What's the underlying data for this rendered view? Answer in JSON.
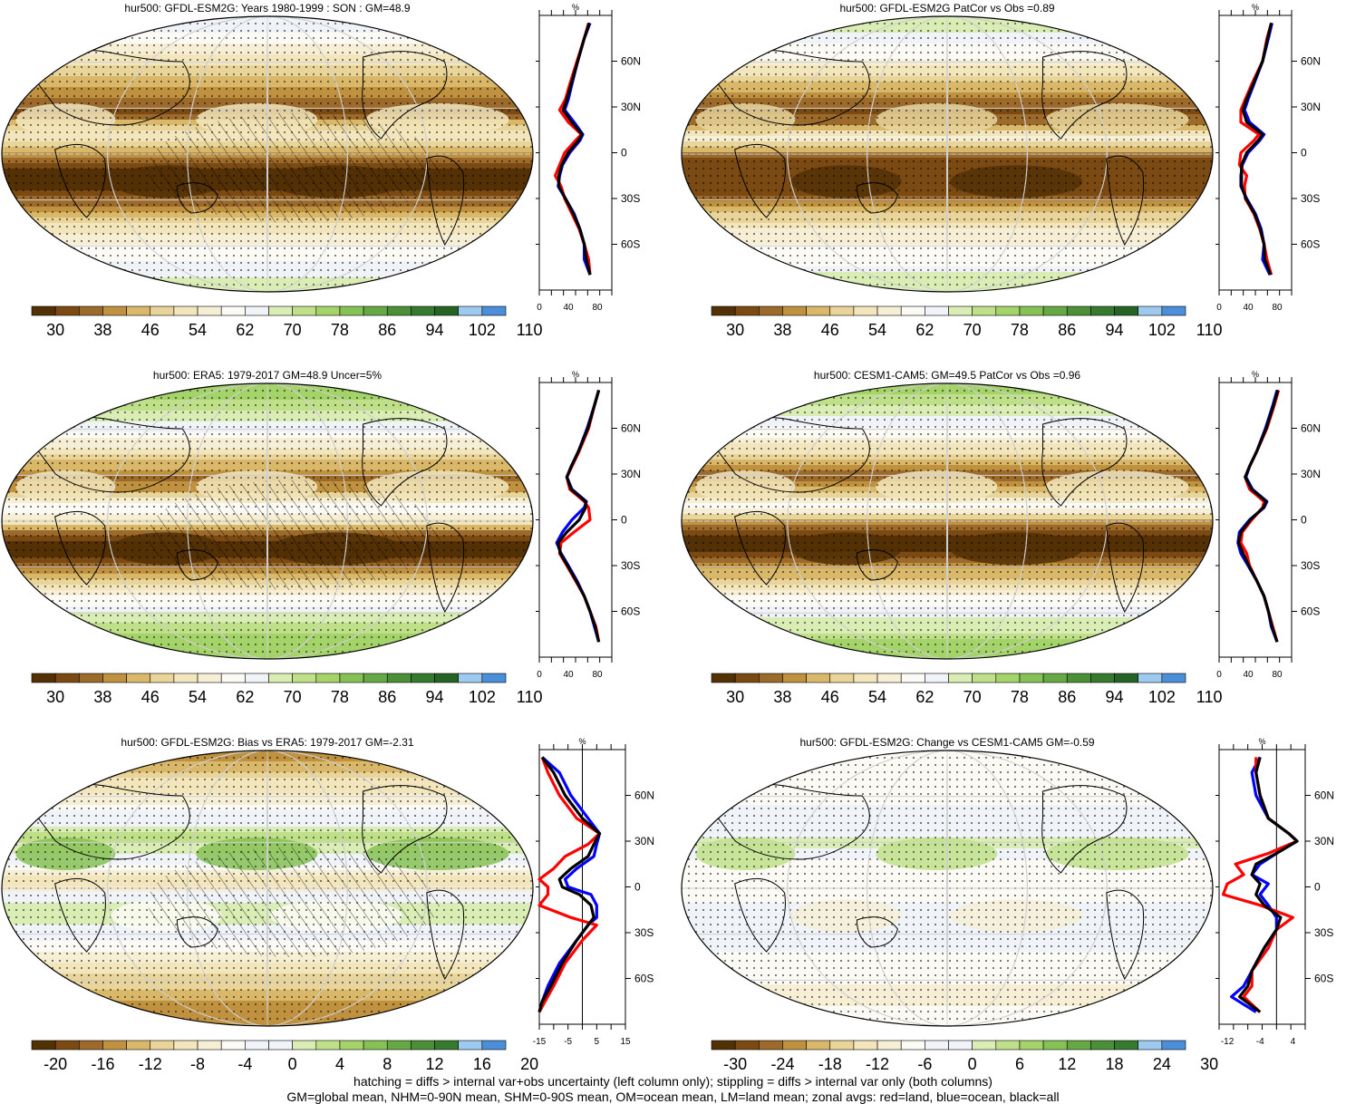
{
  "footer": {
    "line1": "hatching = diffs > internal var+obs uncertainty (left column only); stippling = diffs > internal var only (both columns)",
    "line2": "GM=global mean, NHM=0-90N mean, SHM=0-90S mean, OM=ocean mean, LM=land mean; zonal avgs: red=land, blue=ocean, black=all"
  },
  "colors": {
    "land": "#ff0000",
    "ocean": "#0000ff",
    "all": "#000000"
  },
  "lat_labels": [
    "60N",
    "30N",
    "0",
    "30S",
    "60S"
  ],
  "profile_unit": "%",
  "panels": [
    {
      "id": "p1",
      "title": "hur500: GFDL-ESM2G: Years 1980-1999 : SON : GM=48.9",
      "colorbar_ticks": [
        "30",
        "38",
        "46",
        "54",
        "62",
        "70",
        "78",
        "86",
        "94",
        "102",
        "110"
      ],
      "profile_xticks": [
        "0",
        "40",
        "80"
      ],
      "hatched": true
    },
    {
      "id": "p2",
      "title": "hur500: GFDL-ESM2G PatCor vs Obs =0.89",
      "colorbar_ticks": [
        "30",
        "38",
        "46",
        "54",
        "62",
        "70",
        "78",
        "86",
        "94",
        "102",
        "110"
      ],
      "profile_xticks": [
        "0",
        "40",
        "80"
      ],
      "hatched": false
    },
    {
      "id": "p3",
      "title": "hur500: ERA5: 1979-2017 GM=48.9 Uncer=5%",
      "colorbar_ticks": [
        "30",
        "38",
        "46",
        "54",
        "62",
        "70",
        "78",
        "86",
        "94",
        "102",
        "110"
      ],
      "profile_xticks": [
        "0",
        "40",
        "80"
      ],
      "hatched": true
    },
    {
      "id": "p4",
      "title": "hur500: CESM1-CAM5: GM=49.5 PatCor vs Obs =0.96",
      "colorbar_ticks": [
        "30",
        "38",
        "46",
        "54",
        "62",
        "70",
        "78",
        "86",
        "94",
        "102",
        "110"
      ],
      "profile_xticks": [
        "0",
        "40",
        "80"
      ],
      "hatched": false
    },
    {
      "id": "p5",
      "title": "hur500: GFDL-ESM2G: Bias vs ERA5: 1979-2017  GM=-2.31",
      "colorbar_ticks": [
        "-20",
        "-16",
        "-12",
        "-8",
        "-4",
        "0",
        "4",
        "8",
        "12",
        "16",
        "20"
      ],
      "profile_xticks": [
        "-15",
        "-5",
        "5",
        "15"
      ],
      "hatched": true
    },
    {
      "id": "p6",
      "title": "hur500: GFDL-ESM2G: Change vs CESM1-CAM5 GM=-0.59",
      "colorbar_ticks": [
        "-30",
        "-24",
        "-18",
        "-12",
        "-6",
        "0",
        "6",
        "12",
        "18",
        "24",
        "30"
      ],
      "profile_xticks": [
        "-12",
        "-4",
        "4"
      ],
      "hatched": false
    }
  ],
  "chart_data": [
    {
      "type": "heatmap",
      "title": "hur500: GFDL-ESM2G: Years 1980-1999 : SON : GM=48.9",
      "colorbar": {
        "min": 26,
        "max": 114,
        "ticks": [
          30,
          38,
          46,
          54,
          62,
          70,
          78,
          86,
          94,
          102,
          110
        ]
      },
      "zonal_profile": {
        "type": "line",
        "xlim": [
          0,
          100
        ],
        "ylim": [
          -90,
          90
        ],
        "ylabel": "%",
        "lat": [
          85,
          75,
          60,
          45,
          35,
          28,
          20,
          12,
          8,
          0,
          -8,
          -15,
          -22,
          -30,
          -40,
          -50,
          -60,
          -70,
          -80
        ],
        "series": [
          {
            "name": "land",
            "values": [
              68,
              62,
              52,
              42,
              36,
              28,
              40,
              58,
              50,
              35,
              28,
              22,
              30,
              35,
              45,
              55,
              62,
              68,
              70
            ]
          },
          {
            "name": "ocean",
            "values": [
              70,
              62,
              53,
              45,
              40,
              35,
              48,
              60,
              56,
              42,
              32,
              28,
              26,
              36,
              48,
              56,
              62,
              62,
              70
            ]
          },
          {
            "name": "all",
            "values": [
              69,
              62,
              53,
              44,
              38,
              33,
              45,
              59,
              54,
              40,
              31,
              27,
              27,
              36,
              47,
              56,
              62,
              65,
              70
            ]
          }
        ]
      }
    },
    {
      "type": "heatmap",
      "title": "hur500: GFDL-ESM2G PatCor vs Obs =0.89",
      "colorbar": {
        "min": 26,
        "max": 114,
        "ticks": [
          30,
          38,
          46,
          54,
          62,
          70,
          78,
          86,
          94,
          102,
          110
        ]
      },
      "zonal_profile": {
        "type": "line",
        "xlim": [
          0,
          100
        ],
        "ylim": [
          -90,
          90
        ],
        "ylabel": "%",
        "lat": [
          85,
          75,
          60,
          45,
          35,
          28,
          20,
          12,
          8,
          0,
          -8,
          -15,
          -22,
          -30,
          -40,
          -50,
          -60,
          -70,
          -80
        ],
        "series": [
          {
            "name": "land",
            "values": [
              72,
              66,
              60,
              45,
              36,
              30,
              30,
              55,
              48,
              30,
              28,
              38,
              35,
              36,
              48,
              56,
              62,
              66,
              72
            ]
          },
          {
            "name": "ocean",
            "values": [
              73,
              68,
              60,
              48,
              40,
              35,
              42,
              62,
              56,
              40,
              32,
              30,
              30,
              38,
              50,
              58,
              62,
              60,
              70
            ]
          },
          {
            "name": "all",
            "values": [
              72,
              67,
              60,
              47,
              38,
              33,
              38,
              60,
              54,
              38,
              31,
              31,
              31,
              37,
              49,
              57,
              62,
              63,
              71
            ]
          }
        ]
      }
    },
    {
      "type": "heatmap",
      "title": "hur500: ERA5: 1979-2017 GM=48.9 Uncer=5%",
      "colorbar": {
        "min": 26,
        "max": 114,
        "ticks": [
          30,
          38,
          46,
          54,
          62,
          70,
          78,
          86,
          94,
          102,
          110
        ]
      },
      "zonal_profile": {
        "type": "line",
        "xlim": [
          0,
          100
        ],
        "ylim": [
          -90,
          90
        ],
        "ylabel": "%",
        "lat": [
          85,
          75,
          60,
          45,
          35,
          28,
          20,
          12,
          8,
          0,
          -8,
          -15,
          -22,
          -30,
          -40,
          -50,
          -60,
          -70,
          -80
        ],
        "series": [
          {
            "name": "land",
            "values": [
              82,
              76,
              68,
              55,
              45,
              38,
              42,
              62,
              68,
              70,
              48,
              30,
              28,
              38,
              50,
              62,
              70,
              78,
              82
            ]
          },
          {
            "name": "ocean",
            "values": [
              82,
              76,
              66,
              54,
              44,
              38,
              45,
              65,
              62,
              45,
              32,
              24,
              30,
              40,
              52,
              62,
              70,
              76,
              82
            ]
          },
          {
            "name": "all",
            "values": [
              82,
              76,
              67,
              54,
              44,
              38,
              44,
              64,
              64,
              55,
              38,
              26,
              29,
              39,
              51,
              62,
              70,
              77,
              82
            ]
          }
        ]
      }
    },
    {
      "type": "heatmap",
      "title": "hur500: CESM1-CAM5: GM=49.5 PatCor vs Obs =0.96",
      "colorbar": {
        "min": 26,
        "max": 114,
        "ticks": [
          30,
          38,
          46,
          54,
          62,
          70,
          78,
          86,
          94,
          102,
          110
        ]
      },
      "zonal_profile": {
        "type": "line",
        "xlim": [
          0,
          100
        ],
        "ylim": [
          -90,
          90
        ],
        "ylabel": "%",
        "lat": [
          85,
          75,
          60,
          45,
          35,
          28,
          20,
          12,
          8,
          0,
          -8,
          -15,
          -22,
          -30,
          -40,
          -50,
          -60,
          -70,
          -80
        ],
        "series": [
          {
            "name": "land",
            "values": [
              82,
              76,
              66,
              52,
              42,
              36,
              42,
              62,
              60,
              45,
              32,
              30,
              38,
              42,
              52,
              62,
              68,
              74,
              80
            ]
          },
          {
            "name": "ocean",
            "values": [
              80,
              74,
              64,
              52,
              42,
              37,
              46,
              66,
              62,
              42,
              28,
              26,
              30,
              40,
              52,
              62,
              68,
              72,
              80
            ]
          },
          {
            "name": "all",
            "values": [
              81,
              75,
              65,
              52,
              42,
              36,
              45,
              65,
              61,
              43,
              30,
              27,
              33,
              41,
              52,
              62,
              68,
              73,
              80
            ]
          }
        ]
      }
    },
    {
      "type": "heatmap",
      "title": "hur500: GFDL-ESM2G: Bias vs ERA5: 1979-2017  GM=-2.31",
      "colorbar": {
        "min": -22,
        "max": 22,
        "ticks": [
          -20,
          -16,
          -12,
          -8,
          -4,
          0,
          4,
          8,
          12,
          16,
          20
        ]
      },
      "zonal_profile": {
        "type": "line",
        "xlim": [
          -15,
          15
        ],
        "ylim": [
          -90,
          90
        ],
        "ylabel": "%",
        "lat": [
          85,
          75,
          60,
          45,
          35,
          28,
          20,
          12,
          5,
          0,
          -5,
          -12,
          -20,
          -25,
          -35,
          -50,
          -65,
          -75,
          -82
        ],
        "series": [
          {
            "name": "land",
            "values": [
              -14,
              -12,
              -8,
              -2,
              6,
              2,
              -6,
              -10,
              -15,
              -12,
              -12,
              -15,
              -4,
              5,
              0,
              -6,
              -10,
              -13,
              -15
            ]
          },
          {
            "name": "ocean",
            "values": [
              -14,
              -8,
              -4,
              2,
              6,
              5,
              4,
              -2,
              -6,
              -5,
              3,
              5,
              5,
              2,
              -2,
              -8,
              -12,
              -14,
              -15
            ]
          },
          {
            "name": "all",
            "values": [
              -14,
              -10,
              -6,
              0,
              6,
              4,
              2,
              -4,
              -8,
              -7,
              -1,
              3,
              4,
              2,
              -2,
              -7,
              -11,
              -14,
              -15
            ]
          }
        ]
      }
    },
    {
      "type": "heatmap",
      "title": "hur500: GFDL-ESM2G: Change vs CESM1-CAM5 GM=-0.59",
      "colorbar": {
        "min": -33,
        "max": 33,
        "ticks": [
          -30,
          -24,
          -18,
          -12,
          -6,
          0,
          6,
          12,
          18,
          24,
          30
        ]
      },
      "zonal_profile": {
        "type": "line",
        "xlim": [
          -14,
          7
        ],
        "ylim": [
          -90,
          90
        ],
        "ylabel": "%",
        "lat": [
          85,
          75,
          60,
          45,
          35,
          30,
          22,
          15,
          8,
          2,
          -5,
          -12,
          -20,
          -28,
          -40,
          -55,
          -65,
          -72,
          -82
        ],
        "series": [
          {
            "name": "land",
            "values": [
              -5,
              -5,
              -4,
              -2,
              3,
              5,
              -2,
              -10,
              -8,
              -12,
              -13,
              -4,
              4,
              0,
              -2,
              -6,
              -6,
              -8,
              -4
            ]
          },
          {
            "name": "ocean",
            "values": [
              -4,
              -6,
              -5,
              -2,
              3,
              5,
              0,
              -4,
              -6,
              -2,
              -4,
              -2,
              0,
              0,
              -3,
              -6,
              -8,
              -11,
              -5
            ]
          },
          {
            "name": "all",
            "values": [
              -4,
              -5,
              -4,
              -2,
              3,
              5,
              0,
              -5,
              -6,
              -4,
              -5,
              -3,
              1,
              0,
              -3,
              -6,
              -7,
              -9,
              -4
            ]
          }
        ]
      }
    }
  ]
}
